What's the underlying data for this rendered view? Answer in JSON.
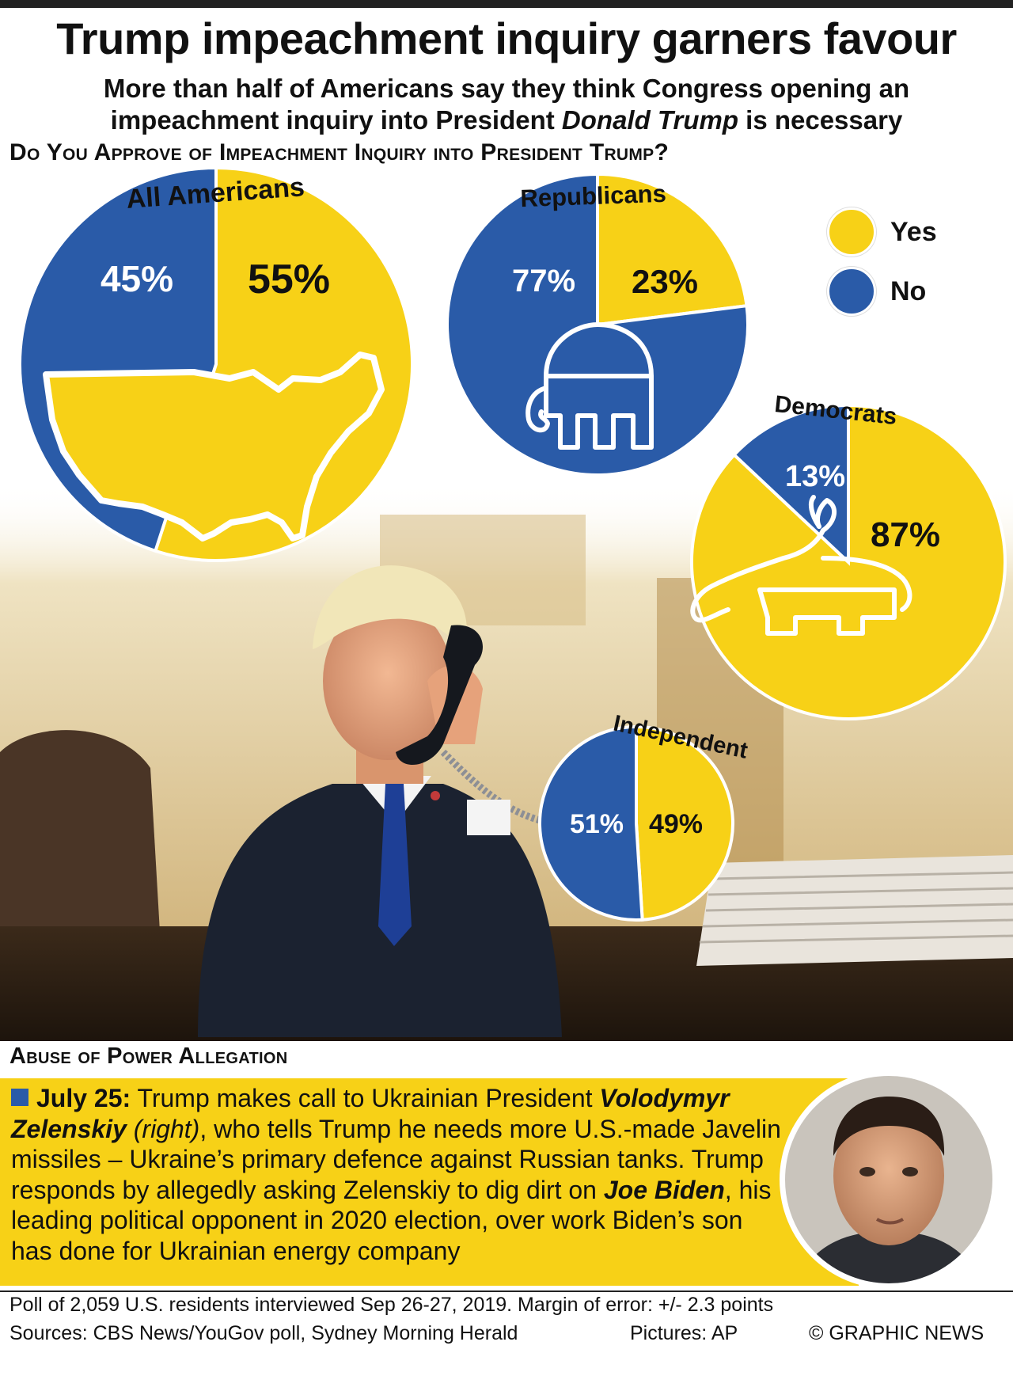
{
  "title": "Trump impeachment inquiry garners favour",
  "subtitle_line1": "More than half of Americans say they think Congress opening an",
  "subtitle_line2_prefix": "impeachment inquiry into President ",
  "subtitle_line2_name": "Donald Trump",
  "subtitle_line2_suffix": " is necessary",
  "question": "Do You Approve of Impeachment Inquiry into President Trump?",
  "legend": {
    "yes": "Yes",
    "no": "No"
  },
  "colors": {
    "yes": "#f7d117",
    "no": "#2a5ba8",
    "text_dark": "#111111",
    "text_light": "#ffffff"
  },
  "chart_data": {
    "type": "pie",
    "title": "Do You Approve of Impeachment Inquiry into President Trump?",
    "categories": [
      "Yes",
      "No"
    ],
    "legend_position": "top-right",
    "series": [
      {
        "name": "All Americans",
        "values": [
          55,
          45
        ],
        "labels": [
          "55%",
          "45%"
        ],
        "icon": "us-map-icon"
      },
      {
        "name": "Republicans",
        "values": [
          23,
          77
        ],
        "labels": [
          "23%",
          "77%"
        ],
        "icon": "elephant-icon"
      },
      {
        "name": "Democrats",
        "values": [
          87,
          13
        ],
        "labels": [
          "87%",
          "13%"
        ],
        "icon": "donkey-icon"
      },
      {
        "name": "Independent",
        "values": [
          49,
          51
        ],
        "labels": [
          "49%",
          "51%"
        ],
        "icon": ""
      }
    ]
  },
  "section_title": "Abuse of Power Allegation",
  "story": {
    "date": "July 25:",
    "part1": " Trump makes call to Ukrainian President ",
    "name1": "Volodymyr Zelenskiy",
    "part2": " (right)",
    "part3": ", who tells Trump he needs more U.S.-made Javelin missiles – Ukraine’s primary defence against Russian tanks. Trump responds by allegedly asking Zelenskiy to dig dirt on ",
    "name2": "Joe Biden",
    "part4": ", his leading political opponent in 2020 election, over work Biden’s son has done for Ukrainian energy company"
  },
  "footer": {
    "poll": "Poll of 2,059 U.S. residents interviewed Sep 26-27, 2019. Margin of error: +/- 2.3 points",
    "sources": "Sources: CBS News/YouGov poll, Sydney Morning Herald",
    "pictures": "Pictures: AP",
    "copyright": "© GRAPHIC NEWS"
  }
}
